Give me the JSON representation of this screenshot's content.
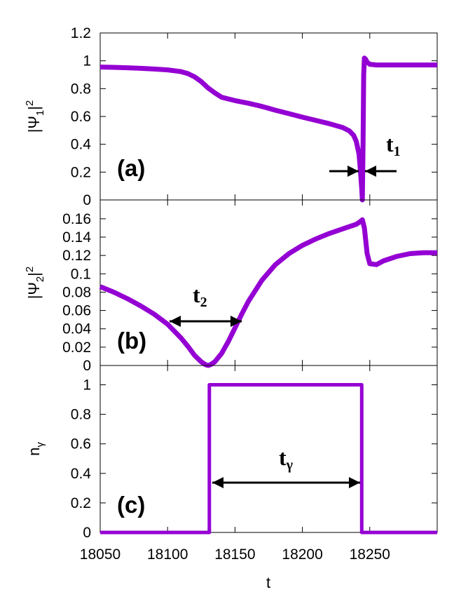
{
  "chart_data": [
    {
      "panel": "a",
      "type": "line",
      "ylabel_main": "|Ψ",
      "ylabel_sub": "1",
      "ylabel_sup": "2",
      "panel_label": "(a)",
      "annotation_main": "t",
      "annotation_sub": "1",
      "xlim": [
        18050,
        18300
      ],
      "ylim": [
        0,
        1.2
      ],
      "yticks": [
        "0",
        "0.2",
        "0.4",
        "0.6",
        "0.8",
        "1",
        "1.2"
      ],
      "ytick_values": [
        0,
        0.2,
        0.4,
        0.6,
        0.8,
        1.0,
        1.2
      ],
      "color": "#9400d3",
      "series": [
        {
          "x": [
            18050,
            18060,
            18070,
            18080,
            18090,
            18100,
            18110,
            18115,
            18120,
            18125,
            18130,
            18135,
            18140,
            18150,
            18160,
            18170,
            18180,
            18190,
            18200,
            18210,
            18220,
            18230,
            18235,
            18238,
            18240,
            18242,
            18243,
            18244,
            18244.5,
            18245,
            18245.5,
            18246,
            18247,
            18248,
            18250,
            18255,
            18260,
            18270,
            18280,
            18290,
            18300
          ],
          "y": [
            0.955,
            0.953,
            0.95,
            0.946,
            0.941,
            0.935,
            0.922,
            0.908,
            0.885,
            0.85,
            0.805,
            0.77,
            0.738,
            0.714,
            0.695,
            0.672,
            0.645,
            0.62,
            0.595,
            0.572,
            0.548,
            0.52,
            0.495,
            0.465,
            0.42,
            0.33,
            0.22,
            0.08,
            0.0,
            0.4,
            0.9,
            1.02,
            1.01,
            0.99,
            0.975,
            0.97,
            0.97,
            0.97,
            0.97,
            0.97,
            0.97
          ]
        }
      ]
    },
    {
      "panel": "b",
      "type": "line",
      "ylabel_main": "|Ψ",
      "ylabel_sub": "2",
      "ylabel_sup": "2",
      "panel_label": "(b)",
      "annotation_main": "t",
      "annotation_sub": "2",
      "xlim": [
        18050,
        18300
      ],
      "ylim": [
        0,
        0.17
      ],
      "yticks": [
        "0",
        "0.02",
        "0.04",
        "0.06",
        "0.08",
        "0.1",
        "0.12",
        "0.14",
        "0.16"
      ],
      "ytick_values": [
        0,
        0.02,
        0.04,
        0.06,
        0.08,
        0.1,
        0.12,
        0.14,
        0.16
      ],
      "color": "#9400d3",
      "series": [
        {
          "x": [
            18050,
            18060,
            18070,
            18080,
            18090,
            18100,
            18110,
            18115,
            18120,
            18125,
            18128,
            18130,
            18132,
            18135,
            18140,
            18145,
            18150,
            18155,
            18160,
            18170,
            18180,
            18190,
            18200,
            18210,
            18220,
            18230,
            18240,
            18243,
            18244.5,
            18246,
            18248,
            18250,
            18255,
            18260,
            18270,
            18280,
            18290,
            18300
          ],
          "y": [
            0.086,
            0.08,
            0.073,
            0.065,
            0.056,
            0.045,
            0.03,
            0.021,
            0.011,
            0.004,
            0.001,
            0.0,
            0.001,
            0.004,
            0.013,
            0.026,
            0.041,
            0.056,
            0.07,
            0.093,
            0.11,
            0.122,
            0.131,
            0.138,
            0.144,
            0.149,
            0.154,
            0.157,
            0.159,
            0.15,
            0.122,
            0.111,
            0.11,
            0.114,
            0.119,
            0.122,
            0.123,
            0.123
          ]
        }
      ]
    },
    {
      "panel": "c",
      "type": "line",
      "ylabel_main": "n",
      "ylabel_sub": "γ",
      "panel_label": "(c)",
      "annotation_main": "t",
      "annotation_sub": "γ",
      "xlabel": "t",
      "xlim": [
        18050,
        18300
      ],
      "ylim": [
        0,
        1.05
      ],
      "xticks": [
        "18050",
        "18100",
        "18150",
        "18200",
        "18250"
      ],
      "xtick_values": [
        18050,
        18100,
        18150,
        18200,
        18250
      ],
      "yticks": [
        "0",
        "0.2",
        "0.4",
        "0.6",
        "0.8",
        "1"
      ],
      "ytick_values": [
        0,
        0.2,
        0.4,
        0.6,
        0.8,
        1.0
      ],
      "color": "#9400d3",
      "series": [
        {
          "x": [
            18050,
            18131,
            18131,
            18244,
            18244,
            18300
          ],
          "y": [
            0,
            0,
            1,
            1,
            0,
            0
          ]
        }
      ]
    }
  ]
}
